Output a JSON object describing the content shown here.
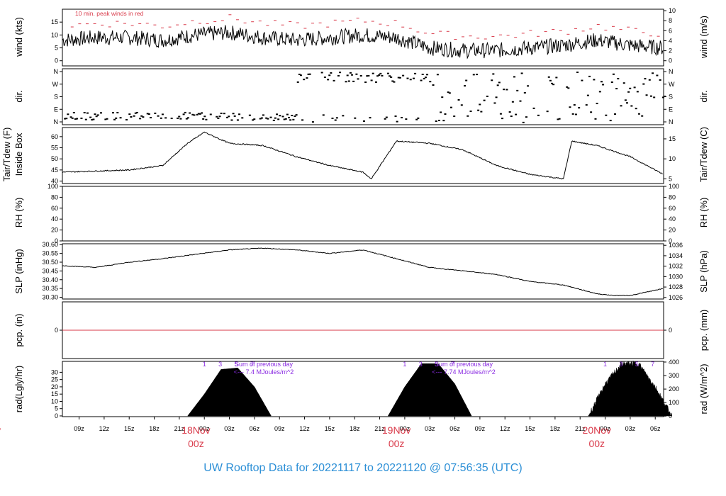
{
  "title": "UW Rooftop Data for 20221117  to  20221120 @ 07:56:35  (UTC)",
  "x_axis": {
    "hour_ticks": [
      "09z",
      "12z",
      "15z",
      "18z",
      "21z",
      "00z",
      "03z",
      "06z",
      "09z",
      "12z",
      "15z",
      "18z",
      "21z",
      "00z",
      "03z",
      "06z",
      "09z",
      "12z",
      "15z",
      "18z",
      "21z",
      "00z",
      "03z",
      "06z"
    ],
    "date_labels": [
      {
        "date": "ov",
        "hour": "z"
      },
      {
        "date": "18Nov",
        "hour": "00z"
      },
      {
        "date": "19Nov",
        "hour": "00z"
      },
      {
        "date": "20Nov",
        "hour": "00z"
      }
    ]
  },
  "colors": {
    "date": "#d93a4a",
    "title": "#2c8fd6",
    "annotation_purple": "#8a2be2",
    "gust": "#d93a4a",
    "line": "#000000"
  },
  "panels": {
    "wind": {
      "left_label": "wind (kts)",
      "right_label": "wind (m/s)",
      "left_ticks": [
        "0",
        "5",
        "10",
        "15"
      ],
      "right_ticks": [
        "0",
        "2",
        "4",
        "6",
        "8",
        "10"
      ],
      "annotation": "10 min. peak winds in red"
    },
    "dir": {
      "left_label": "dir.",
      "right_label": "dir.",
      "ticks": [
        "N",
        "W",
        "S",
        "E",
        "N"
      ]
    },
    "temp": {
      "left_label_1": "Tair/Tdew (F)",
      "left_label_2": "Inside Box",
      "right_label": "Tair/Tdew (C)",
      "left_ticks": [
        "40",
        "45",
        "50",
        "55",
        "60"
      ],
      "right_ticks": [
        "5",
        "10",
        "15"
      ]
    },
    "rh": {
      "left_label": "RH (%)",
      "right_label": "RH (%)",
      "ticks": [
        "0",
        "20",
        "40",
        "60",
        "80",
        "100"
      ]
    },
    "slp": {
      "left_label": "SLP (inHg)",
      "right_label": "SLP (hPa)",
      "left_ticks": [
        "30.30",
        "30.35",
        "30.40",
        "30.45",
        "30.50",
        "30.55",
        "30.60"
      ],
      "right_ticks": [
        "1026",
        "1028",
        "1030",
        "1032",
        "1034",
        "1036"
      ]
    },
    "pcp": {
      "left_label": "pcp. (in)",
      "right_label": "pcp. (mm)",
      "left_ticks": [
        "0"
      ],
      "right_ticks": [
        "0"
      ]
    },
    "rad": {
      "left_label": "rad(Lgly/hr)",
      "right_label": "rad (W/m^2)",
      "left_ticks": [
        "0",
        "5",
        "10",
        "15",
        "20",
        "25",
        "30"
      ],
      "right_ticks": [
        "0",
        "100",
        "200",
        "300",
        "400"
      ],
      "sum_label_1": "Sum of previous day",
      "sum_value_1": "<--- 7.4 MJoules/m^2",
      "sum_label_2": "Sum of previous day",
      "sum_value_2": "<--- 7.74 MJoules/m^2",
      "marker_labels": [
        "1",
        "3",
        "5",
        "7"
      ]
    }
  },
  "chart_data": {
    "type": "line",
    "x_range_hours": [
      -16,
      56
    ],
    "wind_kts": {
      "x": [
        -16,
        -12,
        -8,
        -4,
        0,
        4,
        8,
        12,
        16,
        20,
        24,
        28,
        32,
        36,
        40,
        44,
        48,
        52,
        56
      ],
      "y": [
        8,
        9,
        9,
        8,
        10,
        11,
        9,
        8,
        9,
        10,
        9,
        5,
        4,
        4,
        5,
        6,
        8,
        6,
        5
      ]
    },
    "temp_F": {
      "x": [
        -16,
        -8,
        -4,
        -1,
        1,
        4,
        8,
        12,
        16,
        20,
        21,
        24,
        28,
        32,
        36,
        40,
        44,
        45,
        48,
        52,
        56
      ],
      "y": [
        44,
        45,
        47,
        57,
        62,
        57,
        56,
        51,
        47,
        44,
        41,
        58,
        57,
        54,
        47,
        43,
        41,
        58,
        56,
        51,
        43
      ]
    },
    "slp_inHg": {
      "x": [
        -16,
        -12,
        -8,
        -4,
        4,
        8,
        12,
        16,
        20,
        24,
        28,
        32,
        36,
        40,
        44,
        48,
        50,
        52,
        56
      ],
      "y": [
        30.48,
        30.47,
        30.5,
        30.52,
        30.57,
        30.58,
        30.57,
        30.55,
        30.57,
        30.52,
        30.47,
        30.45,
        30.43,
        30.39,
        30.37,
        30.32,
        30.31,
        30.31,
        30.35
      ]
    },
    "pcp_in": {
      "x": [
        -16,
        56
      ],
      "y": [
        0,
        0
      ]
    },
    "rad_lgly_hr": [
      {
        "x": [
          -1,
          1,
          3,
          5,
          7,
          9
        ],
        "y": [
          0,
          15,
          32,
          33,
          20,
          0
        ]
      },
      {
        "x": [
          23,
          25,
          27,
          29,
          31,
          33
        ],
        "y": [
          0,
          20,
          36,
          36,
          22,
          0
        ]
      },
      {
        "x": [
          47,
          49,
          51,
          53,
          55,
          57
        ],
        "y": [
          0,
          22,
          36,
          36,
          20,
          0
        ]
      }
    ]
  }
}
